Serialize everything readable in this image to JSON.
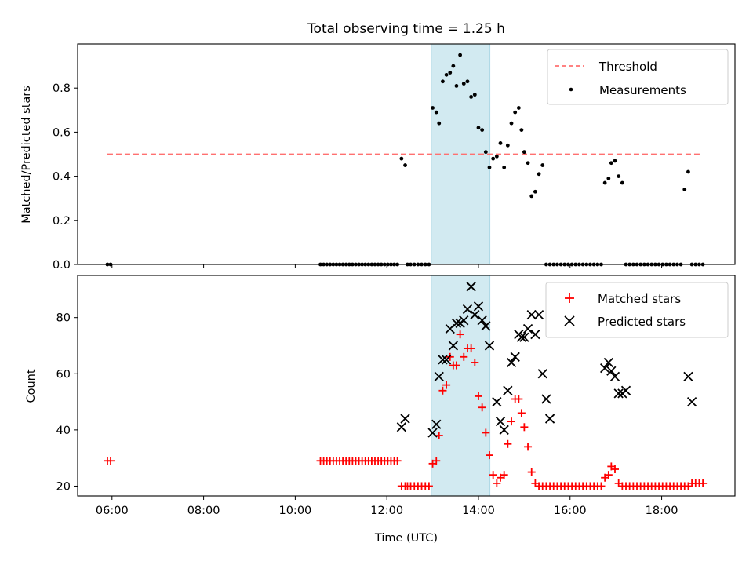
{
  "chart_data": [
    {
      "type": "scatter",
      "title": "Total observing time = 1.25 h",
      "xlabel": "",
      "ylabel": "Matched/Predicted stars",
      "xlim": [
        5.25,
        19.6
      ],
      "ylim": [
        0,
        1.0
      ],
      "yticks": [
        0.0,
        0.2,
        0.4,
        0.6,
        0.8
      ],
      "ytick_labels": [
        "0.0",
        "0.2",
        "0.4",
        "0.6",
        "0.8"
      ],
      "legend_position": "top-right",
      "threshold": {
        "name": "Threshold",
        "value": 0.5,
        "x_range": [
          5.9,
          18.85
        ],
        "color": "#ff7070"
      },
      "highlight_span": {
        "x_range": [
          12.97,
          14.25
        ],
        "color": "#add8e6"
      },
      "series": [
        {
          "name": "Measurements",
          "color": "#000000",
          "x": [
            5.9,
            5.97,
            10.55,
            10.62,
            10.69,
            10.76,
            10.83,
            10.9,
            10.97,
            11.04,
            11.11,
            11.18,
            11.25,
            11.32,
            11.39,
            11.46,
            11.53,
            11.6,
            11.67,
            11.74,
            11.81,
            11.88,
            11.95,
            12.02,
            12.09,
            12.16,
            12.23,
            12.32,
            12.4,
            12.45,
            12.52,
            12.6,
            12.68,
            12.76,
            12.84,
            12.92,
            13.0,
            13.08,
            13.14,
            13.22,
            13.3,
            13.38,
            13.45,
            13.52,
            13.6,
            13.68,
            13.76,
            13.84,
            13.92,
            14.0,
            14.08,
            14.16,
            14.24,
            14.32,
            14.4,
            14.48,
            14.56,
            14.64,
            14.72,
            14.8,
            14.88,
            14.94,
            15.0,
            15.08,
            15.16,
            15.24,
            15.32,
            15.4,
            15.48,
            15.56,
            15.64,
            15.72,
            15.8,
            15.88,
            15.96,
            16.04,
            16.12,
            16.2,
            16.28,
            16.36,
            16.44,
            16.52,
            16.6,
            16.68,
            16.76,
            16.84,
            16.9,
            16.98,
            17.06,
            17.14,
            17.22,
            17.3,
            17.38,
            17.46,
            17.54,
            17.62,
            17.7,
            17.78,
            17.86,
            17.94,
            18.02,
            18.1,
            18.18,
            18.26,
            18.34,
            18.42,
            18.5,
            18.58,
            18.66,
            18.74,
            18.82,
            18.9
          ],
          "y": [
            0,
            0,
            0,
            0,
            0,
            0,
            0,
            0,
            0,
            0,
            0,
            0,
            0,
            0,
            0,
            0,
            0,
            0,
            0,
            0,
            0,
            0,
            0,
            0,
            0,
            0,
            0,
            0.48,
            0.45,
            0,
            0,
            0,
            0,
            0,
            0,
            0,
            0.71,
            0.69,
            0.64,
            0.83,
            0.86,
            0.87,
            0.9,
            0.81,
            0.95,
            0.82,
            0.83,
            0.76,
            0.77,
            0.62,
            0.61,
            0.51,
            0.44,
            0.48,
            0.49,
            0.55,
            0.44,
            0.54,
            0.64,
            0.69,
            0.71,
            0.61,
            0.51,
            0.46,
            0.31,
            0.33,
            0.41,
            0.45,
            0,
            0,
            0,
            0,
            0,
            0,
            0,
            0,
            0,
            0,
            0,
            0,
            0,
            0,
            0,
            0,
            0.37,
            0.39,
            0.46,
            0.47,
            0.4,
            0.37,
            0,
            0,
            0,
            0,
            0,
            0,
            0,
            0,
            0,
            0,
            0,
            0,
            0,
            0,
            0,
            0,
            0.34,
            0.42,
            0,
            0,
            0,
            0
          ]
        }
      ]
    },
    {
      "type": "scatter",
      "title": "",
      "xlabel": "Time (UTC)",
      "ylabel": "Count",
      "xlim": [
        5.25,
        19.6
      ],
      "ylim": [
        16.5,
        95
      ],
      "xticks": [
        6,
        8,
        10,
        12,
        14,
        16,
        18
      ],
      "xtick_labels": [
        "06:00",
        "08:00",
        "10:00",
        "12:00",
        "14:00",
        "16:00",
        "18:00"
      ],
      "yticks": [
        20,
        40,
        60,
        80
      ],
      "ytick_labels": [
        "20",
        "40",
        "60",
        "80"
      ],
      "legend_position": "top-right",
      "highlight_span": {
        "x_range": [
          12.97,
          14.25
        ],
        "color": "#add8e6"
      },
      "series": [
        {
          "name": "Matched stars",
          "marker": "plus",
          "color": "#ff0000",
          "x": [
            5.9,
            5.97,
            10.55,
            10.62,
            10.69,
            10.76,
            10.83,
            10.9,
            10.97,
            11.04,
            11.11,
            11.18,
            11.25,
            11.32,
            11.39,
            11.46,
            11.53,
            11.6,
            11.67,
            11.74,
            11.81,
            11.88,
            11.95,
            12.02,
            12.09,
            12.16,
            12.23,
            12.32,
            12.4,
            12.45,
            12.52,
            12.6,
            12.68,
            12.76,
            12.84,
            12.92,
            13.0,
            13.08,
            13.14,
            13.22,
            13.3,
            13.38,
            13.45,
            13.52,
            13.6,
            13.68,
            13.76,
            13.84,
            13.92,
            14.0,
            14.08,
            14.16,
            14.24,
            14.32,
            14.4,
            14.48,
            14.56,
            14.64,
            14.72,
            14.8,
            14.88,
            14.94,
            15.0,
            15.08,
            15.16,
            15.24,
            15.32,
            15.4,
            15.48,
            15.56,
            15.64,
            15.72,
            15.8,
            15.88,
            15.96,
            16.04,
            16.12,
            16.2,
            16.28,
            16.36,
            16.44,
            16.52,
            16.6,
            16.68,
            16.76,
            16.84,
            16.9,
            16.98,
            17.06,
            17.14,
            17.22,
            17.3,
            17.38,
            17.46,
            17.54,
            17.62,
            17.7,
            17.78,
            17.86,
            17.94,
            18.02,
            18.1,
            18.18,
            18.26,
            18.34,
            18.42,
            18.5,
            18.58,
            18.66,
            18.74,
            18.82,
            18.9
          ],
          "y": [
            29,
            29,
            29,
            29,
            29,
            29,
            29,
            29,
            29,
            29,
            29,
            29,
            29,
            29,
            29,
            29,
            29,
            29,
            29,
            29,
            29,
            29,
            29,
            29,
            29,
            29,
            29,
            20,
            20,
            20,
            20,
            20,
            20,
            20,
            20,
            20,
            28,
            29,
            38,
            54,
            56,
            66,
            63,
            63,
            74,
            66,
            69,
            69,
            64,
            52,
            48,
            39,
            31,
            24,
            21,
            23,
            24,
            35,
            43,
            51,
            51,
            46,
            41,
            34,
            25,
            21,
            20,
            20,
            20,
            20,
            20,
            20,
            20,
            20,
            20,
            20,
            20,
            20,
            20,
            20,
            20,
            20,
            20,
            20,
            23,
            24,
            27,
            26,
            21,
            20,
            20,
            20,
            20,
            20,
            20,
            20,
            20,
            20,
            20,
            20,
            20,
            20,
            20,
            20,
            20,
            20,
            20,
            20,
            21,
            21,
            21,
            21
          ]
        },
        {
          "name": "Predicted stars",
          "marker": "x",
          "color": "#000000",
          "x": [
            12.32,
            12.4,
            13.0,
            13.08,
            13.14,
            13.22,
            13.3,
            13.38,
            13.45,
            13.52,
            13.6,
            13.68,
            13.76,
            13.84,
            13.92,
            14.0,
            14.08,
            14.16,
            14.24,
            14.4,
            14.48,
            14.56,
            14.64,
            14.72,
            14.8,
            14.88,
            14.94,
            15.0,
            15.08,
            15.16,
            15.24,
            15.32,
            15.4,
            15.48,
            15.56,
            16.76,
            16.84,
            16.9,
            16.98,
            17.06,
            17.14,
            17.22,
            18.58,
            18.66
          ],
          "y": [
            41,
            44,
            39,
            42,
            59,
            65,
            65,
            76,
            70,
            78,
            78,
            79,
            83,
            91,
            81,
            84,
            79,
            77,
            70,
            50,
            43,
            40,
            54,
            64,
            66,
            74,
            73,
            73,
            76,
            81,
            74,
            81,
            60,
            51,
            44,
            62,
            64,
            61,
            59,
            53,
            53,
            54,
            59,
            50
          ]
        }
      ]
    }
  ]
}
